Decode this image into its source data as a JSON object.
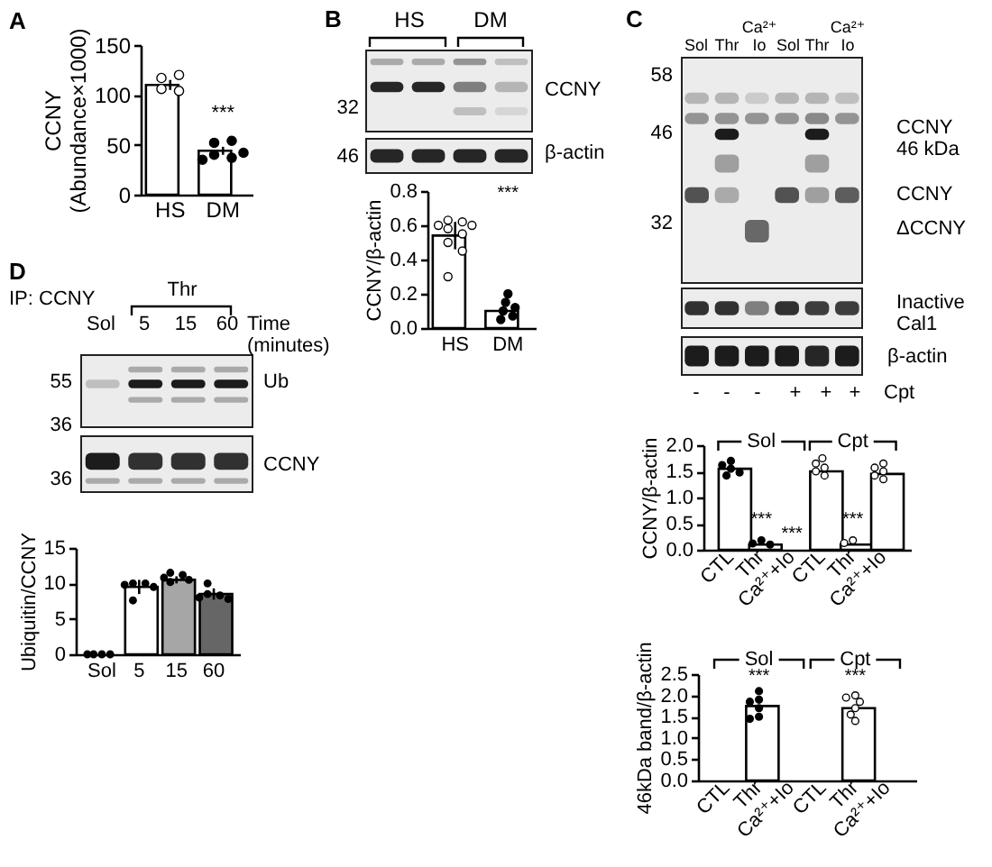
{
  "chart_data": [
    {
      "type": "bar",
      "title": "A",
      "ylabel": "CCNY\n(Abundance×1000)",
      "categories": [
        "HS",
        "DM"
      ],
      "ylim": [
        0,
        150
      ],
      "yticks": [
        0,
        50,
        100,
        150
      ],
      "marker": "circle",
      "series": [
        {
          "type": "bar",
          "color": "#ffffff",
          "values": [
            110,
            44
          ],
          "errors": [
            5,
            4
          ]
        },
        {
          "type": "scatter",
          "color": "#ffffff",
          "x": [
            "HS",
            "HS",
            "HS",
            "HS"
          ],
          "values": [
            117,
            120,
            106,
            104
          ]
        },
        {
          "type": "scatter",
          "color": "#000000",
          "x": [
            "DM",
            "DM",
            "DM",
            "DM",
            "DM",
            "DM"
          ],
          "values": [
            52,
            54,
            40,
            37,
            35,
            42
          ]
        }
      ],
      "annotations": [
        "***"
      ]
    },
    {
      "type": "other",
      "title": "B",
      "annotations": [
        "HS",
        "DM",
        "32",
        "46",
        "CCNY",
        "β-actin"
      ]
    },
    {
      "type": "bar",
      "ylabel": "CCNY/β-actin",
      "categories": [
        "HS",
        "DM"
      ],
      "ylim": [
        0,
        0.8
      ],
      "yticks": [
        {
          "value": 0,
          "label": "0.0"
        },
        0.2,
        0.4,
        0.6,
        0.8
      ],
      "marker": "circle",
      "series": [
        {
          "type": "bar",
          "color": "#ffffff",
          "values": [
            0.54,
            0.1
          ],
          "errors": [
            0.08,
            null
          ]
        },
        {
          "type": "scatter",
          "color": "#ffffff",
          "x": [
            "HS",
            "HS",
            "HS",
            "HS",
            "HS",
            "HS",
            "HS",
            "HS",
            "HS"
          ],
          "values": [
            0.63,
            0.62,
            0.6,
            0.6,
            0.58,
            0.55,
            0.5,
            0.45,
            0.3
          ]
        },
        {
          "type": "scatter",
          "color": "#000000",
          "x": [
            "DM",
            "DM",
            "DM",
            "DM",
            "DM",
            "DM"
          ],
          "values": [
            0.2,
            0.15,
            0.12,
            0.1,
            0.07,
            0.05
          ]
        }
      ],
      "annotations": [
        "***"
      ]
    },
    {
      "type": "other",
      "title": "C",
      "annotations": [
        "Sol",
        "Thr",
        "Ca²⁺\nIo",
        "Sol",
        "Thr",
        "Ca²⁺\nIo",
        "58",
        "46",
        "32",
        "CCNY\n46 kDa",
        "CCNY",
        "ΔCCNY",
        "Inactive\nCal1",
        "β-actin",
        "-",
        "-",
        "-",
        "+",
        "+",
        "+",
        "Cpt"
      ]
    },
    {
      "type": "bar",
      "ylabel": "CCNY/β-actin",
      "categories": [
        "CTL",
        "Thr",
        "Ca²⁺+Io",
        "CTL",
        "Thr",
        "Ca²⁺+Io"
      ],
      "ylim": [
        0,
        2
      ],
      "yticks": [
        {
          "value": 0,
          "label": "0.0"
        },
        0.5,
        {
          "value": 1,
          "label": "1.0"
        },
        1.5,
        {
          "value": 2,
          "label": "2.0"
        }
      ],
      "marker": "circle",
      "series": [
        {
          "type": "bar",
          "color": "#ffffff",
          "values": [
            1.55,
            0.1,
            null,
            1.5,
            0.1,
            1.45
          ]
        },
        {
          "type": "scatter",
          "color": "#000000",
          "values": [
            1.7,
            0.18,
            null,
            null,
            null,
            null
          ]
        },
        {
          "type": "scatter",
          "color": "#000000",
          "values": [
            1.62,
            0.12,
            null,
            null,
            null,
            null
          ]
        },
        {
          "type": "scatter",
          "color": "#000000",
          "values": [
            1.55,
            0.1,
            null,
            null,
            null,
            null
          ]
        },
        {
          "type": "scatter",
          "color": "#000000",
          "values": [
            1.48,
            null,
            null,
            null,
            null,
            null
          ]
        },
        {
          "type": "scatter",
          "color": "#000000",
          "values": [
            1.42,
            null,
            null,
            null,
            null,
            null
          ]
        },
        {
          "type": "scatter",
          "color": "#ffffff",
          "values": [
            null,
            null,
            null,
            1.75,
            0.18,
            1.65
          ]
        },
        {
          "type": "scatter",
          "color": "#ffffff",
          "values": [
            null,
            null,
            null,
            1.65,
            0.13,
            1.57
          ]
        },
        {
          "type": "scatter",
          "color": "#ffffff",
          "values": [
            null,
            null,
            null,
            1.57,
            null,
            1.5
          ]
        },
        {
          "type": "scatter",
          "color": "#ffffff",
          "values": [
            null,
            null,
            null,
            1.5,
            null,
            1.42
          ]
        },
        {
          "type": "scatter",
          "color": "#ffffff",
          "values": [
            null,
            null,
            null,
            1.42,
            null,
            1.35
          ]
        }
      ],
      "annotations": [
        "Sol",
        "Cpt",
        "***",
        "***",
        "***"
      ]
    },
    {
      "type": "bar",
      "ylabel": "46kDa band/β-actin",
      "categories": [
        "CTL",
        "Thr",
        "Ca²⁺+Io",
        "CTL",
        "Thr",
        "Ca²⁺+Io"
      ],
      "ylim": [
        0,
        2.5
      ],
      "yticks": [
        {
          "value": 0,
          "label": "0.0"
        },
        0.5,
        {
          "value": 1,
          "label": "1.0"
        },
        1.5,
        {
          "value": 2,
          "label": "2.0"
        },
        2.5
      ],
      "marker": "circle",
      "series": [
        {
          "type": "bar",
          "color": "#ffffff",
          "values": [
            null,
            1.75,
            null,
            null,
            1.7,
            null
          ]
        },
        {
          "type": "scatter",
          "color": "#000000",
          "values": [
            null,
            2.1,
            null,
            null,
            null,
            null
          ]
        },
        {
          "type": "scatter",
          "color": "#000000",
          "values": [
            null,
            1.9,
            null,
            null,
            null,
            null
          ]
        },
        {
          "type": "scatter",
          "color": "#000000",
          "values": [
            null,
            1.85,
            null,
            null,
            null,
            null
          ]
        },
        {
          "type": "scatter",
          "color": "#000000",
          "values": [
            null,
            1.7,
            null,
            null,
            null,
            null
          ]
        },
        {
          "type": "scatter",
          "color": "#000000",
          "values": [
            null,
            1.5,
            null,
            null,
            null,
            null
          ]
        },
        {
          "type": "scatter",
          "color": "#000000",
          "values": [
            null,
            1.45,
            null,
            null,
            null,
            null
          ]
        },
        {
          "type": "scatter",
          "color": "#ffffff",
          "values": [
            null,
            null,
            null,
            null,
            2.0,
            null
          ]
        },
        {
          "type": "scatter",
          "color": "#ffffff",
          "values": [
            null,
            null,
            null,
            null,
            1.95,
            null
          ]
        },
        {
          "type": "scatter",
          "color": "#ffffff",
          "values": [
            null,
            null,
            null,
            null,
            1.85,
            null
          ]
        },
        {
          "type": "scatter",
          "color": "#ffffff",
          "values": [
            null,
            null,
            null,
            null,
            1.7,
            null
          ]
        },
        {
          "type": "scatter",
          "color": "#ffffff",
          "values": [
            null,
            null,
            null,
            null,
            1.55,
            null
          ]
        },
        {
          "type": "scatter",
          "color": "#ffffff",
          "values": [
            null,
            null,
            null,
            null,
            1.4,
            null
          ]
        }
      ],
      "annotations": [
        "Sol",
        "Cpt",
        "***",
        "***"
      ]
    },
    {
      "type": "other",
      "title": "D",
      "annotations": [
        "IP: CCNY",
        "Thr",
        "Sol",
        "5",
        "15",
        "60",
        "Time\n(minutes)",
        "55",
        "36",
        "Ub",
        "36",
        "CCNY"
      ]
    },
    {
      "type": "bar",
      "ylabel": "Ubiquitin/CCNY",
      "categories": [
        "Sol",
        "5",
        "15",
        "60"
      ],
      "ylim": [
        0,
        15
      ],
      "yticks": [
        0,
        5,
        10,
        15
      ],
      "marker": "circle",
      "series": [
        {
          "type": "bar",
          "colors": [
            null,
            "#ffffff",
            "#a6a6a6",
            "#666666"
          ],
          "values": [
            null,
            9.5,
            10.5,
            8.5
          ],
          "errors": [
            null,
            1,
            0.5,
            0.8
          ]
        },
        {
          "type": "scatter",
          "color": "#000000",
          "x": [
            "Sol",
            "Sol",
            "Sol",
            "Sol"
          ],
          "values": [
            0,
            0,
            0,
            0
          ]
        },
        {
          "type": "scatter",
          "color": "#000000",
          "x": [
            "5",
            "5",
            "5",
            "5",
            "5"
          ],
          "values": [
            10,
            10,
            9.8,
            9.5,
            7.6
          ]
        },
        {
          "type": "scatter",
          "color": "#000000",
          "x": [
            "15",
            "15",
            "15",
            "15",
            "15"
          ],
          "values": [
            11.5,
            11.2,
            10.8,
            10.5,
            10.2
          ]
        },
        {
          "type": "scatter",
          "color": "#000000",
          "x": [
            "60",
            "60",
            "60",
            "60",
            "60"
          ],
          "values": [
            10,
            8.5,
            8.3,
            8,
            7.8
          ]
        }
      ]
    }
  ]
}
